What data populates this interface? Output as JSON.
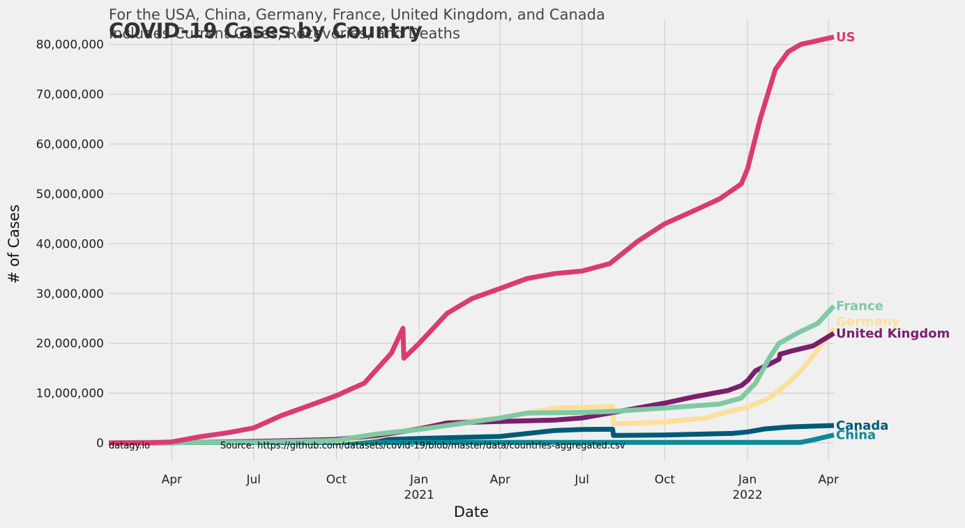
{
  "chart_data": {
    "type": "line",
    "title": "COVID-19 Cases by Country",
    "subtitle_line1": "For the USA, China, Germany, France, United Kingdom, and Canada",
    "subtitle_line2": "Includes Current Cases, Recoveries, and Deaths",
    "xlabel": "Date",
    "ylabel": "# of Cases",
    "xlim": [
      "2020-01-22",
      "2022-04-07"
    ],
    "ylim": [
      -3500000,
      85000000
    ],
    "grid": true,
    "x_ticks": [
      {
        "date": "2020-04-01",
        "label": "Apr",
        "sublabel": ""
      },
      {
        "date": "2020-07-01",
        "label": "Jul",
        "sublabel": ""
      },
      {
        "date": "2020-10-01",
        "label": "Oct",
        "sublabel": ""
      },
      {
        "date": "2021-01-01",
        "label": "Jan",
        "sublabel": "2021"
      },
      {
        "date": "2021-04-01",
        "label": "Apr",
        "sublabel": ""
      },
      {
        "date": "2021-07-01",
        "label": "Jul",
        "sublabel": ""
      },
      {
        "date": "2021-10-01",
        "label": "Oct",
        "sublabel": ""
      },
      {
        "date": "2022-01-01",
        "label": "Jan",
        "sublabel": "2022"
      },
      {
        "date": "2022-04-01",
        "label": "Apr",
        "sublabel": ""
      }
    ],
    "y_ticks": [
      {
        "value": 0,
        "label": "0"
      },
      {
        "value": 10000000,
        "label": "10,000,000"
      },
      {
        "value": 20000000,
        "label": "20,000,000"
      },
      {
        "value": 30000000,
        "label": "30,000,000"
      },
      {
        "value": 40000000,
        "label": "40,000,000"
      },
      {
        "value": 50000000,
        "label": "50,000,000"
      },
      {
        "value": 60000000,
        "label": "60,000,000"
      },
      {
        "value": 70000000,
        "label": "70,000,000"
      },
      {
        "value": 80000000,
        "label": "80,000,000"
      }
    ],
    "footer_left": "datagy.io",
    "footer_source": "Source: https://github.com/datasets/covid-19/blob/master/data/countries-aggregated.csv",
    "series": [
      {
        "name": "Canada",
        "color": "#005a78",
        "label_offset": 0,
        "points": [
          [
            "2020-01-22",
            0
          ],
          [
            "2020-04-01",
            50000
          ],
          [
            "2020-07-01",
            200000
          ],
          [
            "2020-10-01",
            400000
          ],
          [
            "2020-12-01",
            700000
          ],
          [
            "2021-01-01",
            900000
          ],
          [
            "2021-04-01",
            1300000
          ],
          [
            "2021-06-01",
            2500000
          ],
          [
            "2021-07-01",
            2700000
          ],
          [
            "2021-08-04",
            2750000
          ],
          [
            "2021-08-05",
            1500000
          ],
          [
            "2021-10-01",
            1600000
          ],
          [
            "2021-12-15",
            1900000
          ],
          [
            "2022-01-01",
            2200000
          ],
          [
            "2022-01-20",
            2800000
          ],
          [
            "2022-02-15",
            3200000
          ],
          [
            "2022-04-07",
            3500000
          ]
        ]
      },
      {
        "name": "China",
        "color": "#0b8a95",
        "label_offset": 0,
        "points": [
          [
            "2020-01-22",
            0
          ],
          [
            "2020-02-20",
            80000
          ],
          [
            "2022-03-01",
            110000
          ],
          [
            "2022-03-15",
            600000
          ],
          [
            "2022-04-07",
            1600000
          ]
        ]
      },
      {
        "name": "Germany",
        "color": "#fcdf9a",
        "label_offset": -10,
        "points": [
          [
            "2020-01-22",
            0
          ],
          [
            "2020-04-01",
            80000
          ],
          [
            "2020-07-01",
            220000
          ],
          [
            "2020-10-01",
            400000
          ],
          [
            "2020-11-15",
            1200000
          ],
          [
            "2021-01-01",
            3000000
          ],
          [
            "2021-02-01",
            4000000
          ],
          [
            "2021-04-01",
            5000000
          ],
          [
            "2021-05-01",
            6000000
          ],
          [
            "2021-06-01",
            7000000
          ],
          [
            "2021-08-04",
            7300000
          ],
          [
            "2021-08-05",
            3800000
          ],
          [
            "2021-10-01",
            4200000
          ],
          [
            "2021-11-15",
            5000000
          ],
          [
            "2021-12-15",
            6500000
          ],
          [
            "2022-01-01",
            7200000
          ],
          [
            "2022-01-25",
            9000000
          ],
          [
            "2022-02-15",
            12000000
          ],
          [
            "2022-03-01",
            14500000
          ],
          [
            "2022-03-15",
            17500000
          ],
          [
            "2022-04-07",
            23000000
          ]
        ]
      },
      {
        "name": "United Kingdom",
        "color": "#7b1e6e",
        "label_offset": 0,
        "points": [
          [
            "2020-01-22",
            0
          ],
          [
            "2020-04-01",
            30000
          ],
          [
            "2020-07-01",
            300000
          ],
          [
            "2020-10-01",
            700000
          ],
          [
            "2020-11-15",
            1500000
          ],
          [
            "2021-01-01",
            2800000
          ],
          [
            "2021-02-01",
            4000000
          ],
          [
            "2021-04-01",
            4300000
          ],
          [
            "2021-06-01",
            4600000
          ],
          [
            "2021-07-01",
            5000000
          ],
          [
            "2021-08-01",
            6000000
          ],
          [
            "2021-09-01",
            7000000
          ],
          [
            "2021-10-01",
            8000000
          ],
          [
            "2021-11-01",
            9200000
          ],
          [
            "2021-12-10",
            10500000
          ],
          [
            "2021-12-25",
            11500000
          ],
          [
            "2022-01-01",
            12500000
          ],
          [
            "2022-01-10",
            14500000
          ],
          [
            "2022-01-25",
            15800000
          ],
          [
            "2022-02-05",
            16800000
          ],
          [
            "2022-02-06",
            17800000
          ],
          [
            "2022-02-20",
            18500000
          ],
          [
            "2022-03-15",
            19500000
          ],
          [
            "2022-04-07",
            22000000
          ]
        ]
      },
      {
        "name": "France",
        "color": "#7fc9a4",
        "label_offset": 0,
        "points": [
          [
            "2020-01-22",
            0
          ],
          [
            "2020-04-01",
            50000
          ],
          [
            "2020-07-01",
            150000
          ],
          [
            "2020-10-01",
            500000
          ],
          [
            "2020-11-15",
            1800000
          ],
          [
            "2021-01-01",
            2700000
          ],
          [
            "2021-04-01",
            5000000
          ],
          [
            "2021-05-01",
            6000000
          ],
          [
            "2021-07-01",
            6100000
          ],
          [
            "2021-08-01",
            6300000
          ],
          [
            "2021-10-01",
            7000000
          ],
          [
            "2021-12-01",
            7800000
          ],
          [
            "2021-12-25",
            9000000
          ],
          [
            "2022-01-10",
            12000000
          ],
          [
            "2022-01-25",
            17000000
          ],
          [
            "2022-02-05",
            20000000
          ],
          [
            "2022-02-25",
            22000000
          ],
          [
            "2022-03-20",
            24000000
          ],
          [
            "2022-04-07",
            27500000
          ]
        ]
      },
      {
        "name": "US",
        "color": "#da3b72",
        "label_offset": 0,
        "points": [
          [
            "2020-01-22",
            0
          ],
          [
            "2020-03-01",
            100
          ],
          [
            "2020-04-01",
            200000
          ],
          [
            "2020-05-01",
            1200000
          ],
          [
            "2020-06-01",
            2000000
          ],
          [
            "2020-07-01",
            3000000
          ],
          [
            "2020-08-01",
            5500000
          ],
          [
            "2020-09-01",
            7500000
          ],
          [
            "2020-10-01",
            9500000
          ],
          [
            "2020-11-01",
            12000000
          ],
          [
            "2020-12-01",
            18000000
          ],
          [
            "2020-12-14",
            23000000
          ],
          [
            "2020-12-15",
            17000000
          ],
          [
            "2021-01-01",
            20000000
          ],
          [
            "2021-02-01",
            26000000
          ],
          [
            "2021-03-01",
            29000000
          ],
          [
            "2021-04-01",
            31000000
          ],
          [
            "2021-05-01",
            33000000
          ],
          [
            "2021-06-01",
            34000000
          ],
          [
            "2021-07-01",
            34500000
          ],
          [
            "2021-08-01",
            36000000
          ],
          [
            "2021-09-01",
            40500000
          ],
          [
            "2021-10-01",
            44000000
          ],
          [
            "2021-11-01",
            46500000
          ],
          [
            "2021-12-01",
            49000000
          ],
          [
            "2021-12-25",
            52000000
          ],
          [
            "2022-01-01",
            55000000
          ],
          [
            "2022-01-15",
            65000000
          ],
          [
            "2022-02-01",
            75000000
          ],
          [
            "2022-02-15",
            78500000
          ],
          [
            "2022-03-01",
            80000000
          ],
          [
            "2022-04-07",
            81500000
          ]
        ]
      }
    ]
  }
}
